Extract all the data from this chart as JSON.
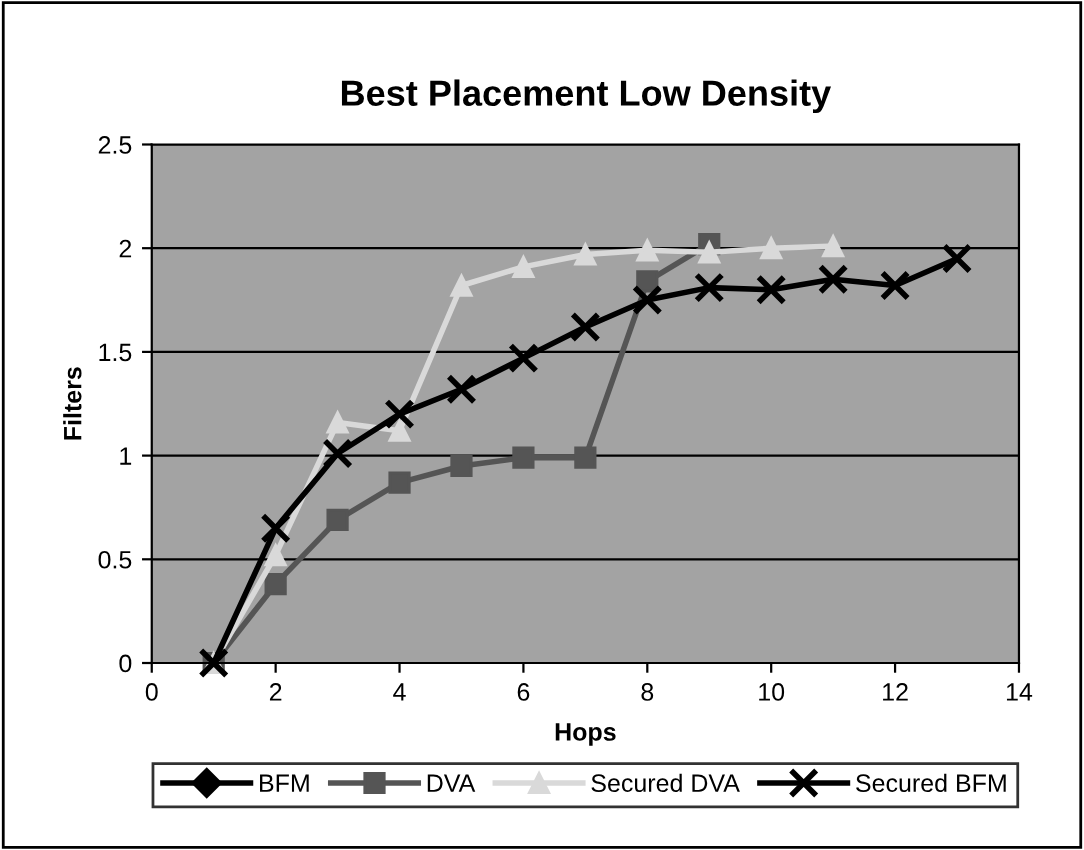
{
  "chart_data": {
    "type": "line",
    "title": "Best Placement Low Density",
    "xlabel": "Hops",
    "ylabel": "Filters",
    "xlim": [
      0,
      14
    ],
    "xticks": [
      0,
      2,
      4,
      6,
      8,
      10,
      12,
      14
    ],
    "ylim": [
      0,
      2.5
    ],
    "yticks": [
      0,
      0.5,
      1,
      1.5,
      2,
      2.5
    ],
    "grid": "y",
    "legend": "bottom",
    "series": [
      {
        "name": "BFM",
        "color": "#000000",
        "marker": "diamond"
      },
      {
        "name": "DVA",
        "color": "#555555",
        "marker": "square",
        "x": [
          1,
          2,
          3,
          4,
          5,
          6,
          7,
          8,
          9
        ],
        "values": [
          0,
          0.38,
          0.69,
          0.87,
          0.95,
          0.99,
          0.99,
          1.84,
          2.02
        ]
      },
      {
        "name": "Secured DVA",
        "color": "#d9d9d9",
        "marker": "triangle",
        "x": [
          1,
          2,
          3,
          4,
          5,
          6,
          7,
          8,
          9,
          10,
          11
        ],
        "values": [
          0,
          0.52,
          1.16,
          1.12,
          1.82,
          1.91,
          1.97,
          1.99,
          1.98,
          2.0,
          2.01
        ]
      },
      {
        "name": "Secured BFM",
        "color": "#000000",
        "marker": "cross",
        "x": [
          1,
          2,
          3,
          4,
          5,
          6,
          7,
          8,
          9,
          10,
          11,
          12,
          13
        ],
        "values": [
          0,
          0.65,
          1.01,
          1.2,
          1.32,
          1.47,
          1.62,
          1.75,
          1.81,
          1.8,
          1.85,
          1.82,
          1.95
        ]
      }
    ]
  }
}
